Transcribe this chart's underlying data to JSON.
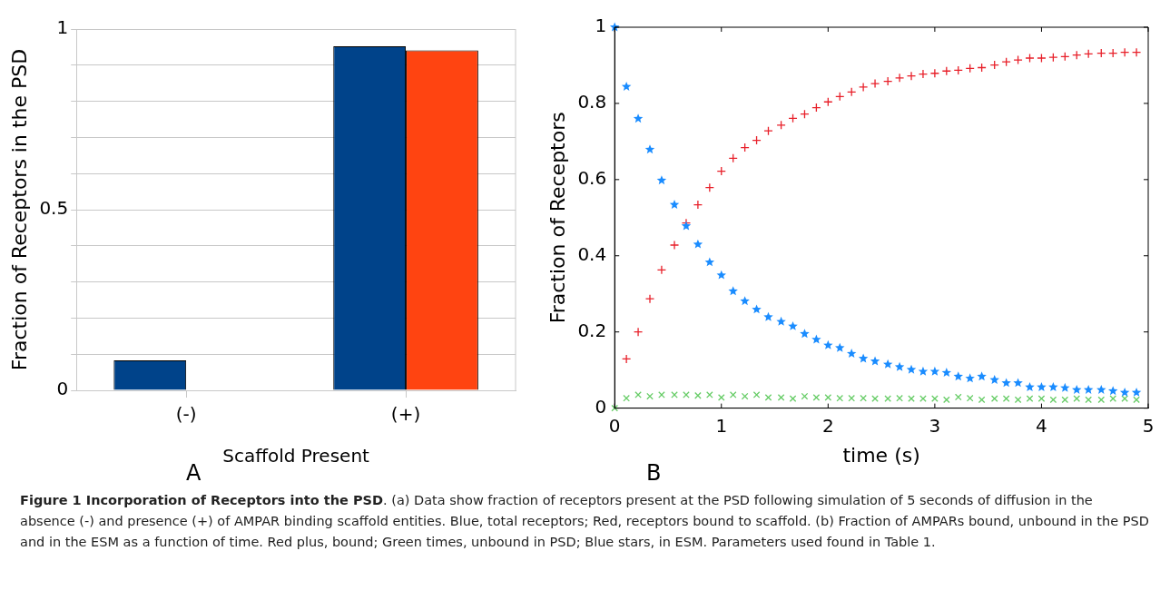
{
  "chart_data": [
    {
      "type": "bar",
      "categories": [
        "(-)",
        "(+)"
      ],
      "xlabel": "Scaffold Present",
      "ylabel": "Fraction of Receptors in the PSD",
      "ylim": [
        0,
        1
      ],
      "yticks": [
        0,
        {
          "value": 0.1,
          "label": null
        },
        {
          "value": 0.2,
          "label": null
        },
        {
          "value": 0.3,
          "label": null
        },
        {
          "value": 0.4,
          "label": null
        },
        0.5,
        {
          "value": 0.6,
          "label": null
        },
        {
          "value": 0.7,
          "label": null
        },
        {
          "value": 0.8,
          "label": null
        },
        {
          "value": 0.9,
          "label": null
        },
        1
      ],
      "grid": "y",
      "legend": false,
      "annotations": [
        "A"
      ],
      "series": [
        {
          "color": "#00438a",
          "values": [
            0.083,
            0.952
          ]
        },
        {
          "color": "#ff4411",
          "values": [
            null,
            0.941
          ]
        }
      ]
    },
    {
      "type": "scatter",
      "xlabel": "time (s)",
      "ylabel": "Fraction of Receptors",
      "xlim": [
        0,
        5
      ],
      "xticks": [
        0,
        1,
        2,
        3,
        4,
        5
      ],
      "ylim": [
        0,
        1
      ],
      "yticks": [
        0,
        0.2,
        0.4,
        0.6,
        0.8,
        1
      ],
      "grid": false,
      "legend": false,
      "annotations": [
        "B",
        "Figure 1 Incorporation of Receptors into the PSD",
        ". (a) Data show fraction of receptors present at the PSD following simulation of 5 seconds of diffusion in the absence (-) and presence (+) of AMPAR binding scaffold entities. Blue, total receptors; Red, receptors bound to scaffold. (b) Fraction of AMPARs bound, unbound in the PSD and in the ESM as a function of time. Red plus, bound; Green times, unbound in PSD; Blue stars, in ESM. Parameters used found in Table 1."
      ],
      "x": [
        0,
        0.11,
        0.22,
        0.33,
        0.44,
        0.56,
        0.67,
        0.78,
        0.89,
        1,
        1.11,
        1.22,
        1.33,
        1.44,
        1.56,
        1.67,
        1.78,
        1.89,
        2,
        2.11,
        2.22,
        2.33,
        2.44,
        2.56,
        2.67,
        2.78,
        2.89,
        3,
        3.11,
        3.22,
        3.33,
        3.44,
        3.56,
        3.67,
        3.78,
        3.89,
        4,
        4.11,
        4.22,
        4.33,
        4.44,
        4.56,
        4.67,
        4.78,
        4.89
      ],
      "series": [
        {
          "color": "#e8202a",
          "marker": "cross",
          "values": [
            null,
            0.129,
            0.2,
            0.287,
            0.363,
            0.428,
            0.486,
            0.534,
            0.579,
            0.622,
            0.656,
            0.684,
            0.703,
            0.728,
            0.743,
            0.761,
            0.772,
            0.789,
            0.804,
            0.818,
            0.83,
            0.843,
            0.852,
            0.858,
            0.867,
            0.872,
            0.877,
            0.879,
            0.885,
            0.887,
            0.892,
            0.894,
            0.901,
            0.909,
            0.914,
            0.919,
            0.919,
            0.921,
            0.923,
            0.927,
            0.93,
            0.932,
            0.932,
            0.934,
            0.934
          ]
        },
        {
          "color": "#66cc66",
          "marker": "x",
          "values": [
            0,
            0.026,
            0.035,
            0.031,
            0.035,
            0.035,
            0.035,
            0.033,
            0.035,
            0.028,
            0.035,
            0.031,
            0.035,
            0.028,
            0.028,
            0.025,
            0.031,
            0.028,
            0.028,
            0.026,
            0.026,
            0.026,
            0.025,
            0.025,
            0.026,
            0.025,
            0.025,
            0.025,
            0.022,
            0.029,
            0.026,
            0.022,
            0.025,
            0.025,
            0.022,
            0.025,
            0.025,
            0.022,
            0.022,
            0.025,
            0.022,
            0.022,
            0.025,
            0.025,
            0.022
          ]
        },
        {
          "color": "#1a8cff",
          "marker": "star",
          "values": [
            1,
            0.844,
            0.76,
            0.679,
            0.598,
            0.534,
            0.478,
            0.43,
            0.383,
            0.349,
            0.307,
            0.281,
            0.259,
            0.239,
            0.227,
            0.215,
            0.195,
            0.18,
            0.165,
            0.158,
            0.143,
            0.13,
            0.123,
            0.115,
            0.108,
            0.101,
            0.096,
            0.096,
            0.093,
            0.083,
            0.078,
            0.083,
            0.074,
            0.066,
            0.066,
            0.055,
            0.055,
            0.055,
            0.053,
            0.048,
            0.048,
            0.048,
            0.045,
            0.041,
            0.041
          ]
        }
      ]
    }
  ]
}
